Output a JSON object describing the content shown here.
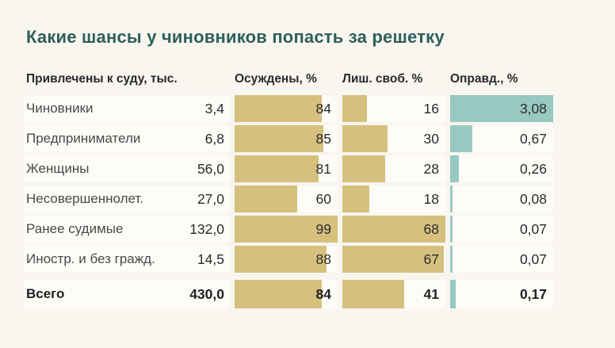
{
  "title": "Какие шансы у чиновников попасть за решетку",
  "columns": {
    "brought": "Привлечены к суду, тыс.",
    "convicted": "Осуждены, %",
    "imprisoned": "Лиш. своб. %",
    "acquitted": "Оправд., %"
  },
  "colors": {
    "background": "#f9f6f0",
    "cell_background": "#fdfcf8",
    "bar_tan": "#d6c07e",
    "bar_teal": "#98c9c1",
    "title_teal": "#2e5f5a"
  },
  "rows": [
    {
      "label": "Чиновники",
      "brought": "3,4",
      "convicted": "84",
      "imprisoned": "16",
      "acquitted": "3,08"
    },
    {
      "label": "Предприниматели",
      "brought": "6,8",
      "convicted": "85",
      "imprisoned": "30",
      "acquitted": "0,67"
    },
    {
      "label": "Женщины",
      "brought": "56,0",
      "convicted": "81",
      "imprisoned": "28",
      "acquitted": "0,26"
    },
    {
      "label": "Несовершеннолет.",
      "brought": "27,0",
      "convicted": "60",
      "imprisoned": "18",
      "acquitted": "0,08"
    },
    {
      "label": "Ранее судимые",
      "brought": "132,0",
      "convicted": "99",
      "imprisoned": "68",
      "acquitted": "0,07"
    },
    {
      "label": "Иностр. и без гражд.",
      "brought": "14,5",
      "convicted": "88",
      "imprisoned": "67",
      "acquitted": "0,07"
    },
    {
      "label": "Всего",
      "brought": "430,0",
      "convicted": "84",
      "imprisoned": "41",
      "acquitted": "0,17"
    }
  ],
  "chart_data": {
    "type": "bar",
    "orientation": "horizontal",
    "title": "Какие шансы у чиновников попасть за решетку",
    "categories": [
      "Чиновники",
      "Предприниматели",
      "Женщины",
      "Несовершеннолет.",
      "Ранее судимые",
      "Иностр. и без гражд.",
      "Всего"
    ],
    "series": [
      {
        "name": "Привлечены к суду, тыс.",
        "values": [
          3.4,
          6.8,
          56.0,
          27.0,
          132.0,
          14.5,
          430.0
        ],
        "display": "text-only"
      },
      {
        "name": "Осуждены, %",
        "values": [
          84,
          85,
          81,
          60,
          99,
          88,
          84
        ],
        "color": "#d6c07e",
        "axis_max": 99
      },
      {
        "name": "Лиш. своб. %",
        "values": [
          16,
          30,
          28,
          18,
          68,
          67,
          41
        ],
        "color": "#d6c07e",
        "axis_max": 68
      },
      {
        "name": "Оправд., %",
        "values": [
          3.08,
          0.67,
          0.26,
          0.08,
          0.07,
          0.07,
          0.17
        ],
        "color": "#98c9c1",
        "axis_max": 3.08
      }
    ],
    "legend_position": "none",
    "grid": false
  }
}
